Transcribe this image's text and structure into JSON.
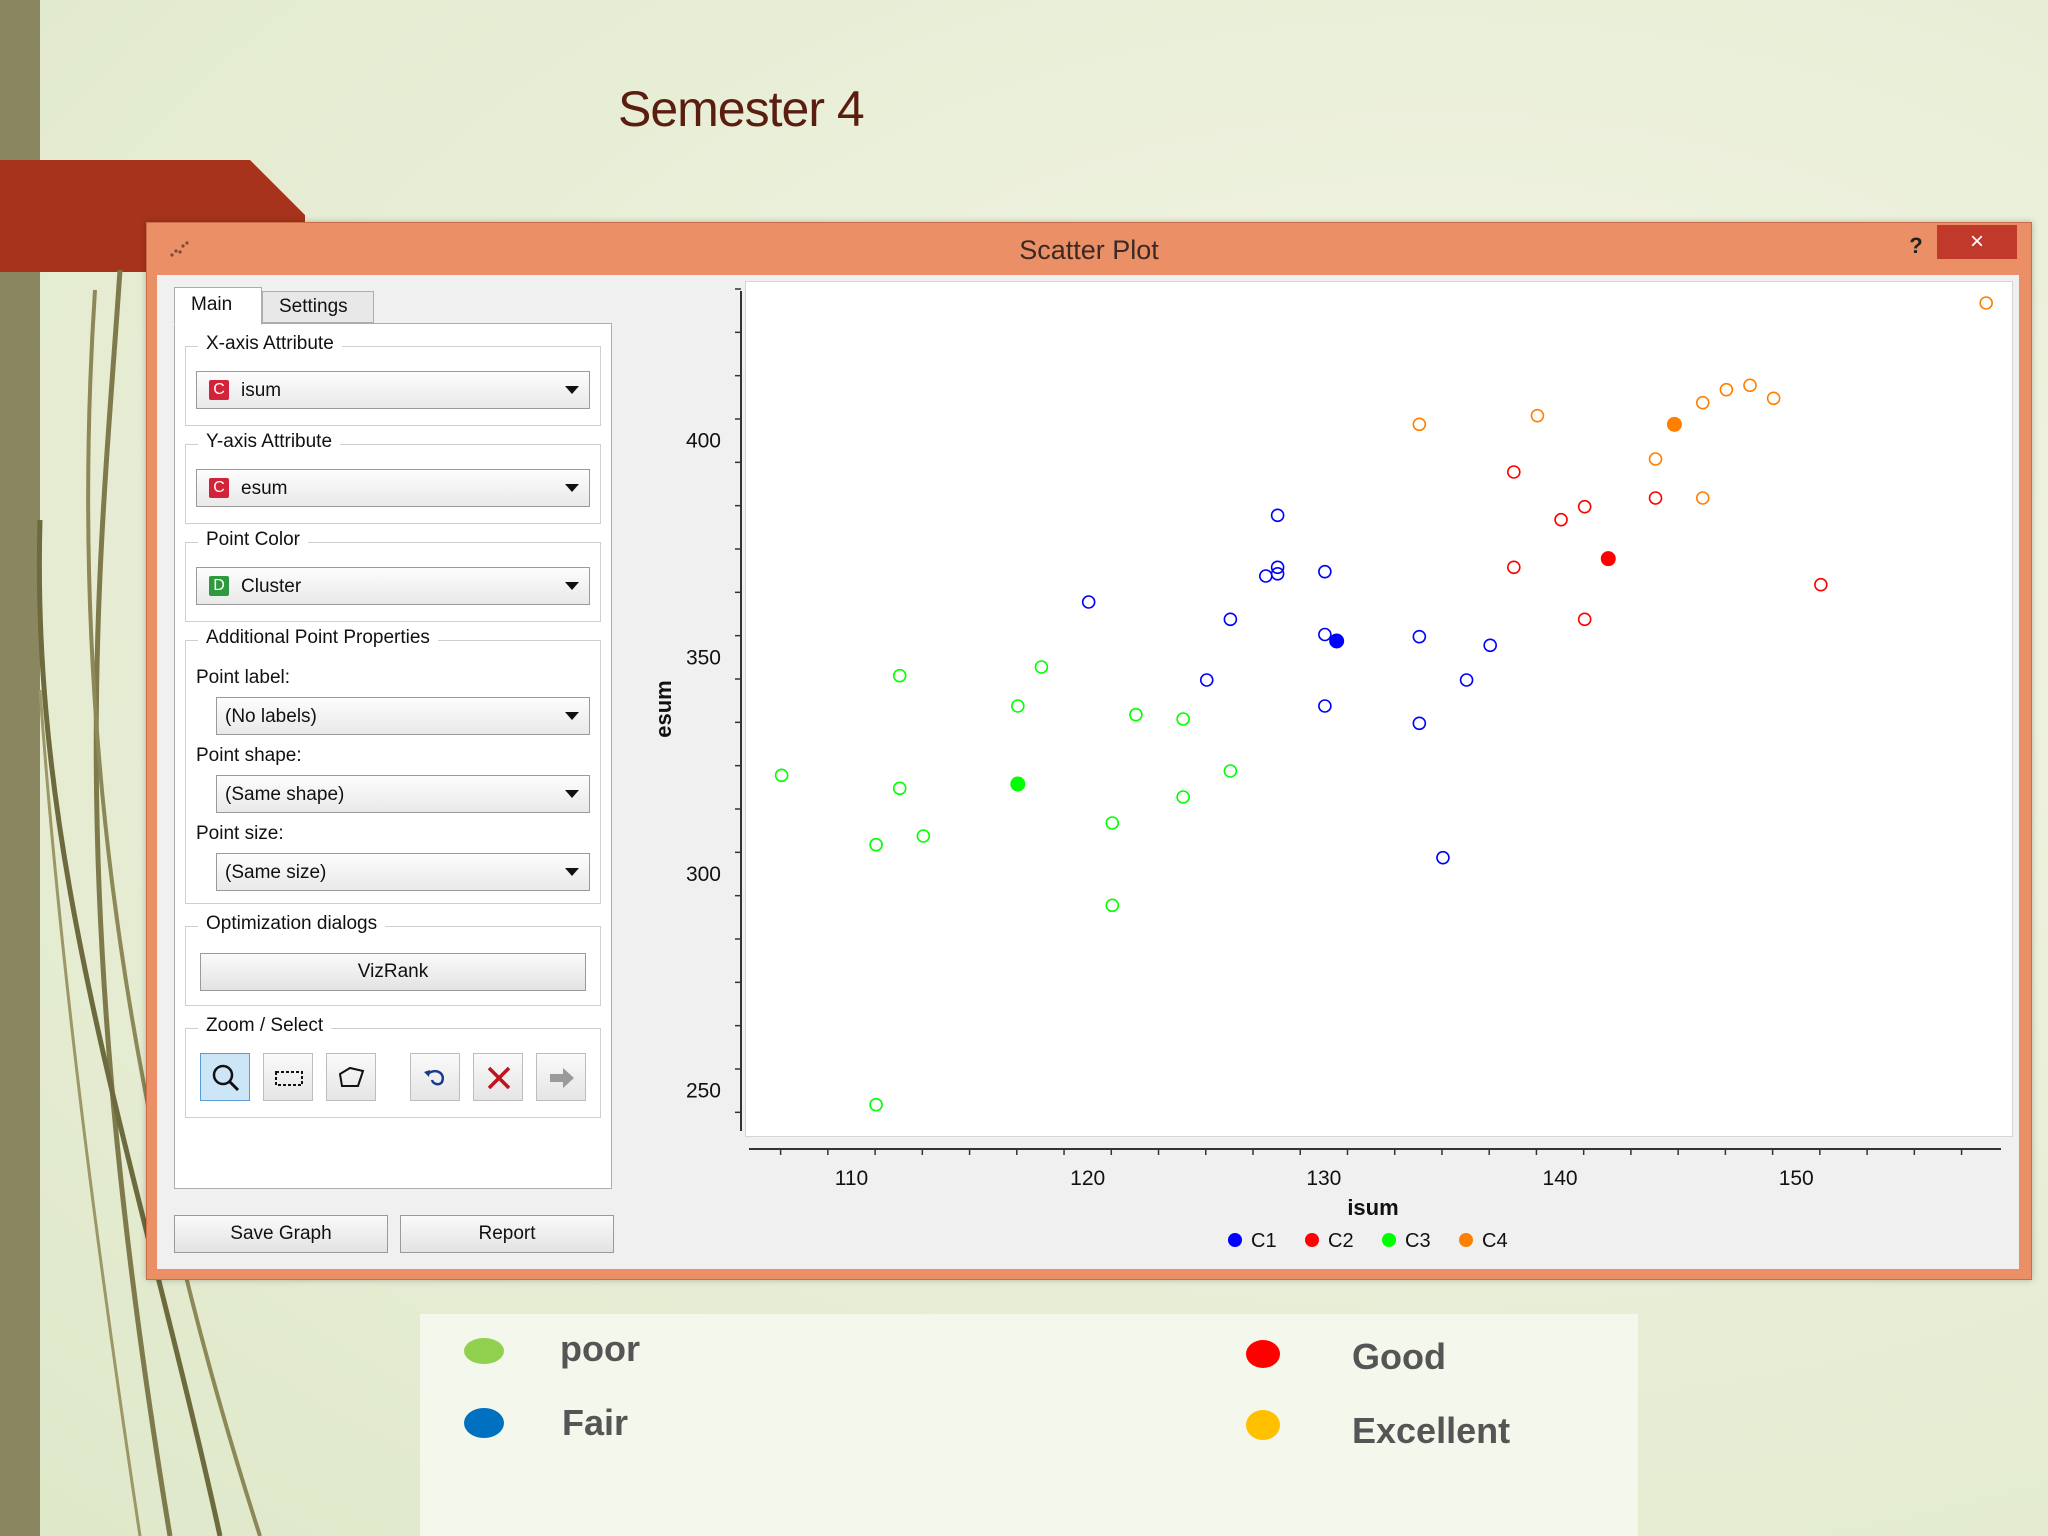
{
  "slide": {
    "title": "Semester 4"
  },
  "window": {
    "title": "Scatter Plot",
    "help_label": "?",
    "close_label": "×"
  },
  "tabs": [
    {
      "label": "Main",
      "active": true
    },
    {
      "label": "Settings",
      "active": false
    }
  ],
  "main": {
    "x_axis": {
      "group_label": "X-axis Attribute",
      "type_badge": "C",
      "value": "isum"
    },
    "y_axis": {
      "group_label": "Y-axis Attribute",
      "type_badge": "C",
      "value": "esum"
    },
    "point_color": {
      "group_label": "Point Color",
      "type_badge": "D",
      "value": "Cluster"
    },
    "additional": {
      "group_label": "Additional Point Properties",
      "point_label": {
        "label": "Point label:",
        "value": "(No labels)"
      },
      "point_shape": {
        "label": "Point shape:",
        "value": "(Same shape)"
      },
      "point_size": {
        "label": "Point size:",
        "value": "(Same size)"
      }
    },
    "optimization": {
      "group_label": "Optimization dialogs",
      "vizrank_label": "VizRank"
    },
    "zoom": {
      "group_label": "Zoom / Select",
      "tools": [
        "zoom-icon",
        "rectangle-select-icon",
        "lasso-select-icon",
        "undo-icon",
        "clear-selection-icon",
        "send-selection-icon"
      ]
    }
  },
  "footer": {
    "save_graph_label": "Save Graph",
    "report_label": "Report"
  },
  "legend_box": {
    "items": [
      {
        "label": "poor",
        "color": "#92d050"
      },
      {
        "label": "Fair",
        "color": "#0070c0"
      },
      {
        "label": "Good",
        "color": "#ff0000"
      },
      {
        "label": "Excellent",
        "color": "#ffc000"
      }
    ]
  },
  "chart_data": {
    "type": "scatter",
    "xlabel": "isum",
    "ylabel": "esum",
    "xlim": [
      106,
      158.5
    ],
    "ylim": [
      243,
      435
    ],
    "x_ticks": [
      110,
      120,
      130,
      140,
      150
    ],
    "y_ticks": [
      250,
      300,
      350,
      400
    ],
    "legend_position": "bottom-center",
    "grid": false,
    "colors": {
      "C1": "#0000ff",
      "C2": "#ff0000",
      "C3": "#00ff00",
      "C4": "#ff8000"
    },
    "series": [
      {
        "name": "C1",
        "points": [
          [
            120,
            363
          ],
          [
            126,
            359
          ],
          [
            127.5,
            369
          ],
          [
            128,
            383
          ],
          [
            128,
            371
          ],
          [
            128,
            369.5
          ],
          [
            130,
            370
          ],
          [
            130,
            355.5
          ],
          [
            130,
            339
          ],
          [
            125,
            345
          ],
          [
            134,
            355
          ],
          [
            134,
            335
          ],
          [
            137,
            353
          ],
          [
            136,
            345
          ],
          [
            135,
            304
          ]
        ],
        "filled": [
          [
            130.5,
            354
          ]
        ]
      },
      {
        "name": "C2",
        "points": [
          [
            138,
            393
          ],
          [
            138,
            371
          ],
          [
            140,
            382
          ],
          [
            141,
            385
          ],
          [
            141,
            359
          ],
          [
            144,
            387
          ],
          [
            151,
            367
          ]
        ],
        "filled": [
          [
            142,
            373
          ]
        ]
      },
      {
        "name": "C3",
        "points": [
          [
            107,
            323
          ],
          [
            111,
            307
          ],
          [
            112,
            346
          ],
          [
            112,
            320
          ],
          [
            113,
            309
          ],
          [
            117,
            339
          ],
          [
            118,
            348
          ],
          [
            121,
            312
          ],
          [
            121,
            293
          ],
          [
            122,
            337
          ],
          [
            124,
            336
          ],
          [
            124,
            318
          ],
          [
            126,
            324
          ],
          [
            111,
            247
          ]
        ],
        "filled": [
          [
            117,
            321
          ]
        ]
      },
      {
        "name": "C4",
        "points": [
          [
            134,
            404
          ],
          [
            139,
            406
          ],
          [
            144,
            396
          ],
          [
            146,
            387
          ],
          [
            146,
            409
          ],
          [
            147,
            412
          ],
          [
            148,
            413
          ],
          [
            149,
            410
          ],
          [
            158,
            432
          ]
        ],
        "filled": [
          [
            144.8,
            404
          ]
        ]
      }
    ]
  }
}
